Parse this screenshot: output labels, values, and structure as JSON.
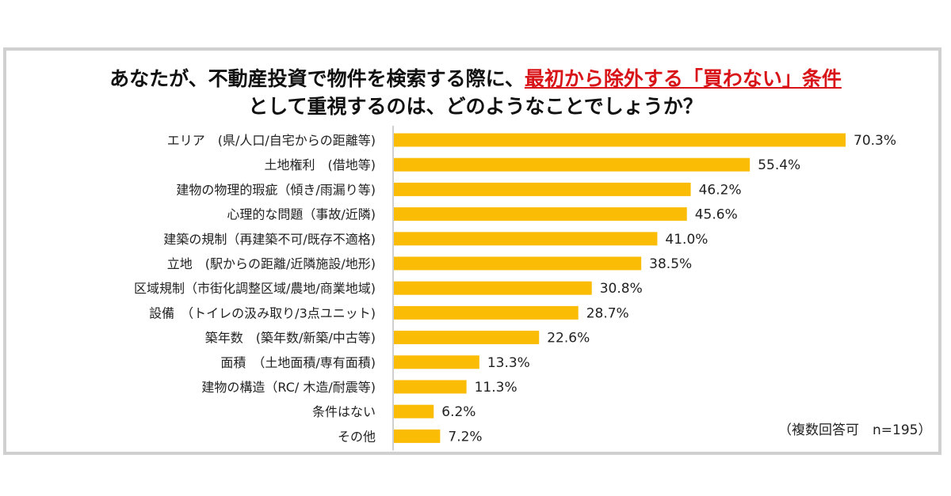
{
  "title": {
    "line1_part1": "あなたが、不動産投資で物件を検索する際に、",
    "line1_highlight": "最初から除外する「買わない」条件",
    "line2": "として重視するのは、どのようなことでしょうか？"
  },
  "note": "（複数回答可　n=195）",
  "colors": {
    "bar": "#fbbc05",
    "highlight": "#d81418",
    "axis": "#bfbfbf"
  },
  "chart_data": {
    "type": "bar",
    "orientation": "horizontal",
    "title": "あなたが、不動産投資で物件を検索する際に、最初から除外する「買わない」条件として重視するのは、どのようなことでしょうか？",
    "xlim": [
      0,
      80
    ],
    "unit": "%",
    "categories": [
      "エリア　(県/人口/自宅からの距離等)",
      "土地権利　(借地等)",
      "建物の物理的瑕疵（傾き/雨漏り等)",
      "心理的な問題（事故/近隣)",
      "建築の規制（再建築不可/既存不適格)",
      "立地　(駅からの距離/近隣施設/地形)",
      "区域規制（市街化調整区域/農地/商業地域)",
      "設備　（トイレの汲み取り/3点ユニット)",
      "築年数　(築年数/新築/中古等)",
      "面積　（土地面積/専有面積)",
      "建物の構造（RC/ 木造/耐震等)",
      "条件はない",
      "その他"
    ],
    "values": [
      70.3,
      55.4,
      46.2,
      45.6,
      41.0,
      38.5,
      30.8,
      28.7,
      22.6,
      13.3,
      11.3,
      6.2,
      7.2
    ],
    "value_labels": [
      "70.3%",
      "55.4%",
      "46.2%",
      "45.6%",
      "41.0%",
      "38.5%",
      "30.8%",
      "28.7%",
      "22.6%",
      "13.3%",
      "11.3%",
      "6.2%",
      "7.2%"
    ]
  }
}
